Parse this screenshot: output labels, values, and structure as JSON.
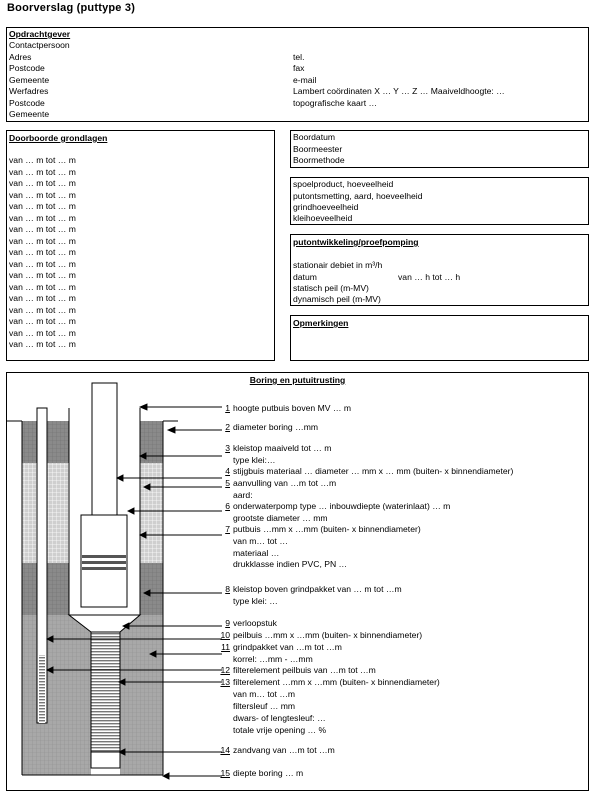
{
  "title": "Boorverslag (puttype 3)",
  "opdracht": {
    "header": "Opdrachtgever",
    "left": [
      "Contactpersoon",
      "Adres",
      "Postcode",
      "Gemeente",
      "Werfadres",
      "Postcode",
      "Gemeente"
    ],
    "right": [
      "tel.",
      "fax",
      "e-mail",
      "Lambert coördinaten X …    Y …    Z …  Maaiveldhoogte: …",
      "topografische kaart …"
    ]
  },
  "grondlagen": {
    "header": "Doorboorde grondlagen",
    "rows": [
      "van … m tot … m",
      "van … m tot … m",
      "van … m tot … m",
      "van … m tot … m",
      "van … m tot … m",
      "van … m tot … m",
      "van … m tot … m",
      "van … m tot … m",
      "van … m tot … m",
      "van … m tot … m",
      "van … m tot … m",
      "van … m tot … m",
      "van … m tot … m",
      "van … m tot … m",
      "van … m tot … m",
      "van … m tot … m",
      "van … m tot … m"
    ]
  },
  "boor": [
    "Boordatum",
    "Boormeester",
    "Boormethode"
  ],
  "spoel": [
    "spoelproduct, hoeveelheid",
    "putontsmetting, aard, hoeveelheid",
    "grindhoeveelheid",
    "kleihoeveelheid"
  ],
  "ontwikkeling": {
    "header": "putontwikkeling/proefpomping",
    "debiet": "stationair debiet in m³/h",
    "datum": "datum",
    "datum_range": "van …  h tot … h",
    "statisch": "statisch peil (m-MV)",
    "dynamisch": "dynamisch peil (m-MV)"
  },
  "opmerkingen": {
    "header": "Opmerkingen"
  },
  "boring": {
    "header": "Boring en putuitrusting",
    "items": [
      {
        "n": "1",
        "t": "hoogte putbuis boven MV … m"
      },
      {
        "n": "2",
        "t": "diameter boring …mm"
      },
      {
        "n": "3",
        "t": "kleistop maaiveld tot … m"
      },
      {
        "n": "",
        "t": "type klei:…"
      },
      {
        "n": "4",
        "t": "stijgbuis materiaal …          diameter … mm x … mm (buiten- x binnendiameter)"
      },
      {
        "n": "5",
        "t": "aanvulling van …m tot …m"
      },
      {
        "n": "",
        "t": "aard:"
      },
      {
        "n": "6",
        "t": "onderwaterpomp type …                inbouwdiepte (waterinlaat) … m"
      },
      {
        "n": "",
        "t": "grootste diameter … mm"
      },
      {
        "n": "7",
        "t": "putbuis …mm x …mm (buiten- x binnendiameter)"
      },
      {
        "n": "",
        "t": "van m… tot …"
      },
      {
        "n": "",
        "t": "materiaal …"
      },
      {
        "n": "",
        "t": "drukklasse indien PVC, PN …"
      },
      {
        "n": "8",
        "t": "kleistop boven grindpakket van … m tot …m"
      },
      {
        "n": "",
        "t": "type klei: …"
      },
      {
        "n": "9",
        "t": "verloopstuk"
      },
      {
        "n": "10",
        "t": "peilbuis …mm x …mm (buiten- x binnendiameter)"
      },
      {
        "n": "11",
        "t": "grindpakket van …m tot …m"
      },
      {
        "n": "",
        "t": "korrel: …mm - …mm"
      },
      {
        "n": "12",
        "t": "filterelement peilbuis van …m tot …m"
      },
      {
        "n": "13",
        "t": "filterelement  …mm x …mm (buiten- x binnendiameter)"
      },
      {
        "n": "",
        "t": "van m… tot …m"
      },
      {
        "n": "",
        "t": "filtersleuf … mm"
      },
      {
        "n": "",
        "t": "dwars- of lengtesleuf: …"
      },
      {
        "n": "",
        "t": "totale vrije opening … %"
      },
      {
        "n": "14",
        "t": "zandvang van …m tot …m"
      },
      {
        "n": "15",
        "t": "diepte boring … m"
      }
    ]
  },
  "colors": {
    "line": "#000000",
    "dark_fill": "#888888",
    "light_fill": "#dddddd",
    "grid": "#ffffff"
  }
}
